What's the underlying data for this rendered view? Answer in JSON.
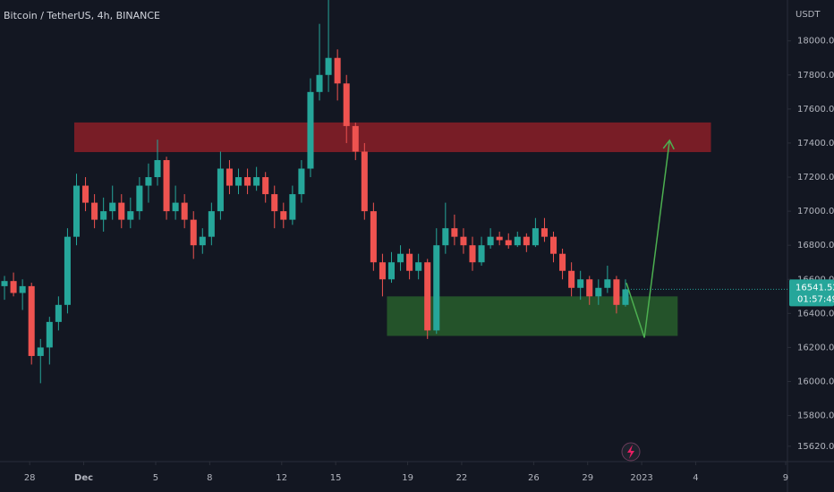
{
  "chart_data": {
    "type": "candlestick",
    "title": "Bitcoin / TetherUS, 4h, BINANCE",
    "y_unit": "USDT",
    "up_color": "#26a69a",
    "down_color": "#ef5350",
    "grid": false,
    "ylim": [
      15530,
      18240
    ],
    "xlim": [
      -0.5,
      87
    ],
    "yticks": [
      {
        "value": 15620,
        "label": "15620.00"
      },
      {
        "value": 15800,
        "label": "15800.00"
      },
      {
        "value": 16000,
        "label": "16000.00"
      },
      {
        "value": 16200,
        "label": "16200.00"
      },
      {
        "value": 16400,
        "label": "16400.00"
      },
      {
        "value": 16600,
        "label": "16600.00"
      },
      {
        "value": 16800,
        "label": "16800.00"
      },
      {
        "value": 17000,
        "label": "17000.00"
      },
      {
        "value": 17200,
        "label": "17200.00"
      },
      {
        "value": 17400,
        "label": "17400.00"
      },
      {
        "value": 17600,
        "label": "17600.00"
      },
      {
        "value": 17800,
        "label": "17800.00"
      },
      {
        "value": 18000,
        "label": "18000.00"
      }
    ],
    "xticks": [
      {
        "value": 2.8,
        "label": "28"
      },
      {
        "value": 8.8,
        "label": "Dec"
      },
      {
        "value": 16.8,
        "label": "5"
      },
      {
        "value": 22.8,
        "label": "8"
      },
      {
        "value": 30.8,
        "label": "12"
      },
      {
        "value": 36.8,
        "label": "15"
      },
      {
        "value": 44.8,
        "label": "19"
      },
      {
        "value": 50.8,
        "label": "22"
      },
      {
        "value": 58.8,
        "label": "26"
      },
      {
        "value": 64.8,
        "label": "29"
      },
      {
        "value": 70.8,
        "label": "2023"
      },
      {
        "value": 76.8,
        "label": "4"
      },
      {
        "value": 86.8,
        "label": "9"
      }
    ],
    "candles": [
      [
        16560,
        16620,
        16480,
        16590
      ],
      [
        16590,
        16640,
        16500,
        16520
      ],
      [
        16520,
        16600,
        16420,
        16560
      ],
      [
        16560,
        16580,
        16100,
        16150
      ],
      [
        16150,
        16250,
        15990,
        16200
      ],
      [
        16200,
        16380,
        16100,
        16350
      ],
      [
        16350,
        16500,
        16300,
        16450
      ],
      [
        16450,
        16900,
        16400,
        16850
      ],
      [
        16850,
        17220,
        16800,
        17150
      ],
      [
        17150,
        17200,
        17000,
        17050
      ],
      [
        17050,
        17100,
        16900,
        16950
      ],
      [
        16950,
        17080,
        16880,
        17000
      ],
      [
        17000,
        17150,
        16950,
        17050
      ],
      [
        17050,
        17100,
        16900,
        16950
      ],
      [
        16950,
        17080,
        16900,
        17000
      ],
      [
        17000,
        17200,
        16950,
        17150
      ],
      [
        17150,
        17280,
        17050,
        17200
      ],
      [
        17200,
        17420,
        17150,
        17300
      ],
      [
        17300,
        17320,
        16950,
        17000
      ],
      [
        17000,
        17150,
        16950,
        17050
      ],
      [
        17050,
        17100,
        16900,
        16950
      ],
      [
        16950,
        17000,
        16720,
        16800
      ],
      [
        16800,
        16900,
        16750,
        16850
      ],
      [
        16850,
        17050,
        16800,
        17000
      ],
      [
        17000,
        17350,
        16950,
        17250
      ],
      [
        17250,
        17300,
        17100,
        17150
      ],
      [
        17150,
        17250,
        17100,
        17200
      ],
      [
        17200,
        17250,
        17100,
        17150
      ],
      [
        17150,
        17260,
        17120,
        17200
      ],
      [
        17200,
        17230,
        17050,
        17100
      ],
      [
        17100,
        17150,
        16900,
        17000
      ],
      [
        17000,
        17050,
        16900,
        16950
      ],
      [
        16950,
        17150,
        16920,
        17100
      ],
      [
        17100,
        17300,
        17050,
        17250
      ],
      [
        17250,
        17780,
        17200,
        17700
      ],
      [
        17700,
        18100,
        17650,
        17800
      ],
      [
        17800,
        18240,
        17700,
        17900
      ],
      [
        17900,
        17950,
        17650,
        17750
      ],
      [
        17750,
        17800,
        17400,
        17500
      ],
      [
        17500,
        17520,
        17300,
        17350
      ],
      [
        17350,
        17400,
        16950,
        17000
      ],
      [
        17000,
        17050,
        16650,
        16700
      ],
      [
        16700,
        16750,
        16500,
        16600
      ],
      [
        16600,
        16760,
        16580,
        16700
      ],
      [
        16700,
        16800,
        16650,
        16750
      ],
      [
        16750,
        16780,
        16600,
        16650
      ],
      [
        16650,
        16750,
        16600,
        16700
      ],
      [
        16700,
        16720,
        16250,
        16300
      ],
      [
        16300,
        16900,
        16280,
        16800
      ],
      [
        16800,
        17050,
        16750,
        16900
      ],
      [
        16900,
        16980,
        16800,
        16850
      ],
      [
        16850,
        16900,
        16750,
        16800
      ],
      [
        16800,
        16850,
        16650,
        16700
      ],
      [
        16700,
        16850,
        16680,
        16800
      ],
      [
        16800,
        16900,
        16780,
        16850
      ],
      [
        16850,
        16880,
        16800,
        16830
      ],
      [
        16830,
        16870,
        16780,
        16800
      ],
      [
        16800,
        16880,
        16790,
        16850
      ],
      [
        16850,
        16870,
        16760,
        16800
      ],
      [
        16800,
        16960,
        16790,
        16900
      ],
      [
        16900,
        16960,
        16820,
        16850
      ],
      [
        16850,
        16880,
        16700,
        16750
      ],
      [
        16750,
        16780,
        16600,
        16650
      ],
      [
        16650,
        16700,
        16500,
        16550
      ],
      [
        16550,
        16650,
        16480,
        16600
      ],
      [
        16600,
        16620,
        16450,
        16500
      ],
      [
        16500,
        16600,
        16450,
        16550
      ],
      [
        16550,
        16680,
        16520,
        16600
      ],
      [
        16600,
        16620,
        16400,
        16450
      ],
      [
        16450,
        16600,
        16440,
        16541.52
      ]
    ],
    "countdown": "01:57:49",
    "zones": [
      {
        "color": "#8b1e27",
        "x": [
          7.75,
          78.5
        ],
        "y": [
          17347,
          17521
        ]
      },
      {
        "color": "#285e2c",
        "x": [
          42.5,
          74.8
        ],
        "y": [
          16268,
          16500
        ]
      }
    ],
    "arrow": {
      "color": "#4caf50",
      "x": [
        69.1,
        71.1,
        73.9
      ],
      "y": [
        16579,
        16258,
        17416
      ]
    }
  }
}
